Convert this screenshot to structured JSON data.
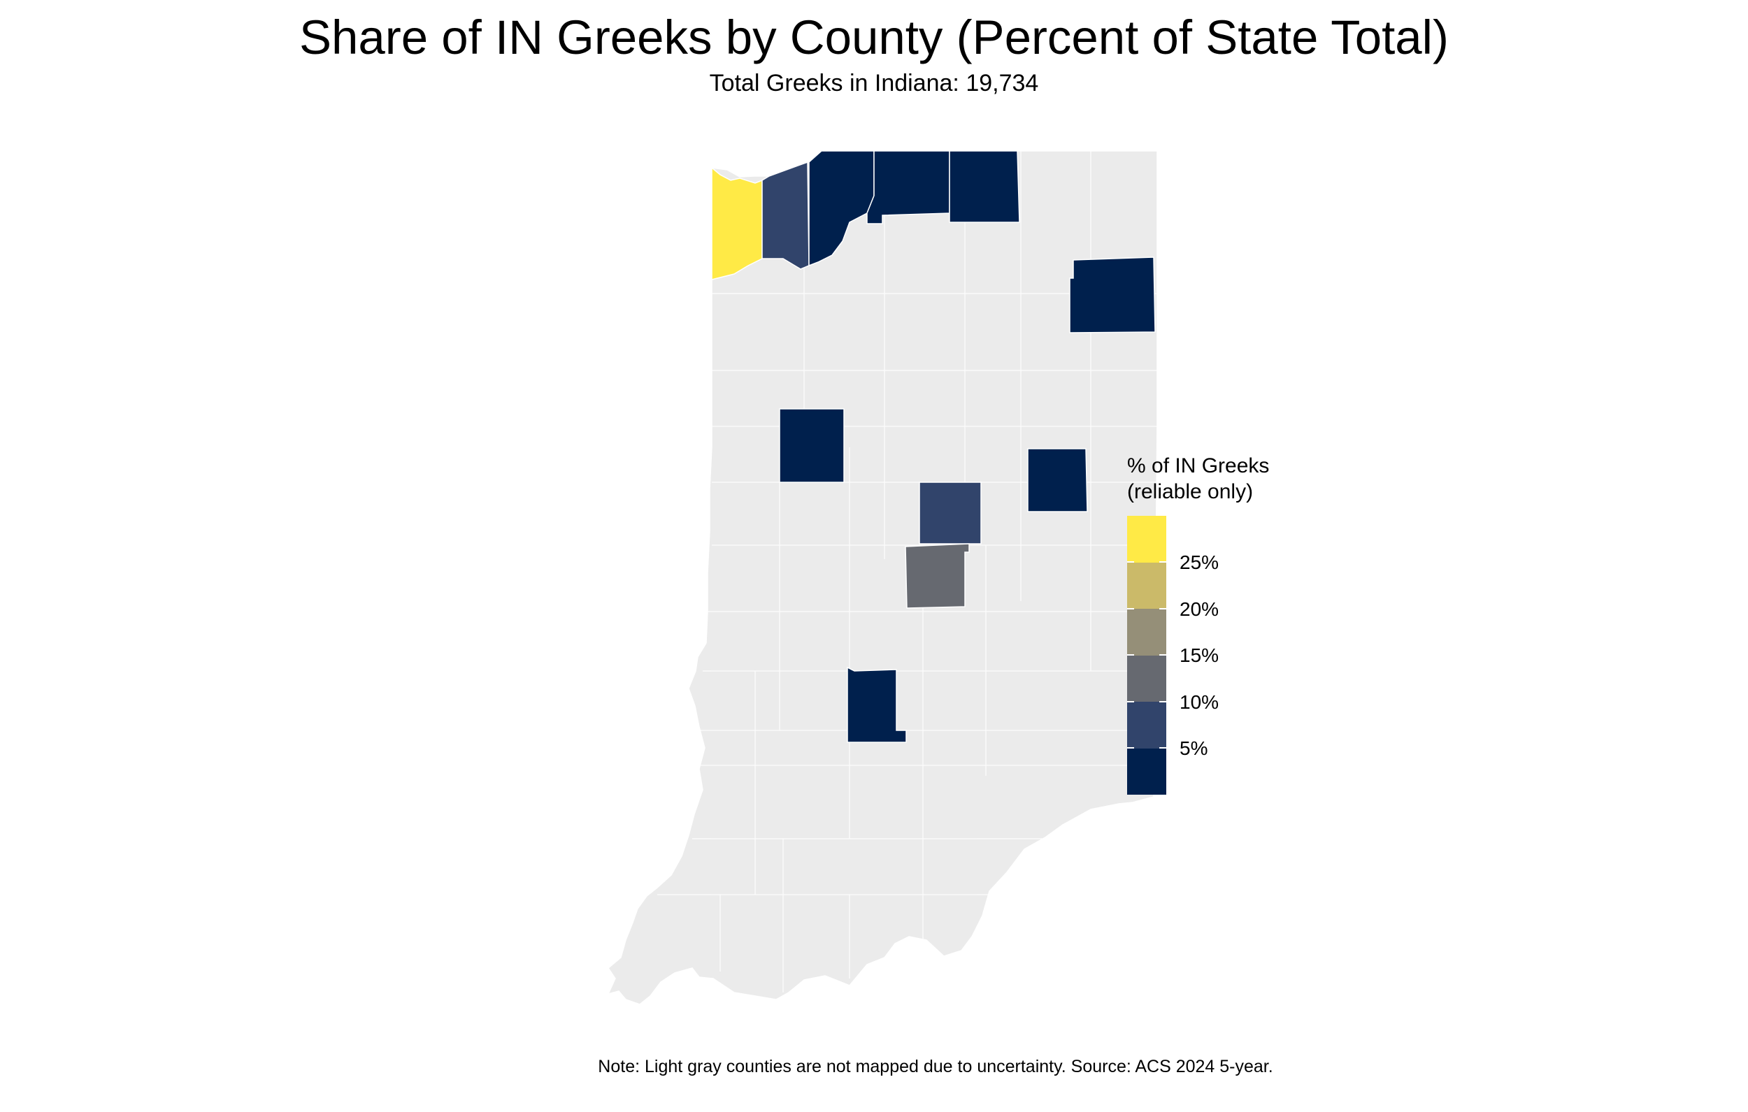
{
  "title": "Share of IN Greeks by County (Percent of State Total)",
  "subtitle": "Total Greeks in Indiana: 19,734",
  "caption": "Note: Light gray counties are not mapped due to uncertainty. Source: ACS 2024 5-year.",
  "colors": {
    "background": "#ffffff",
    "unmapped_county": "#ebebeb",
    "county_border": "#ffffff"
  },
  "legend": {
    "title_line1": "% of IN Greeks",
    "title_line2": "(reliable only)",
    "scale_range": [
      0,
      30
    ],
    "colorbar": [
      {
        "from": 0,
        "to": 5,
        "color": "#00204d"
      },
      {
        "from": 5,
        "to": 10,
        "color": "#31446b"
      },
      {
        "from": 10,
        "to": 15,
        "color": "#666970"
      },
      {
        "from": 15,
        "to": 20,
        "color": "#958f78"
      },
      {
        "from": 20,
        "to": 25,
        "color": "#cbba69"
      },
      {
        "from": 25,
        "to": 30,
        "color": "#ffea46"
      }
    ],
    "tick_labels": [
      "5%",
      "10%",
      "15%",
      "20%",
      "25%"
    ]
  },
  "chart_data": {
    "type": "choropleth",
    "region": "Indiana",
    "value_name": "% of IN Greeks",
    "mapped_counties": [
      {
        "id": "lake",
        "share_bin": "25-30",
        "color": "#ffea46"
      },
      {
        "id": "porter",
        "share_bin": "5-10",
        "color": "#31446b"
      },
      {
        "id": "laporte",
        "share_bin": "0-5",
        "color": "#00204d"
      },
      {
        "id": "stjoseph",
        "share_bin": "0-5",
        "color": "#00204d"
      },
      {
        "id": "elkhart",
        "share_bin": "0-5",
        "color": "#00204d"
      },
      {
        "id": "allen",
        "share_bin": "0-5",
        "color": "#00204d"
      },
      {
        "id": "tippecanoe",
        "share_bin": "0-5",
        "color": "#00204d"
      },
      {
        "id": "hamilton",
        "share_bin": "5-10",
        "color": "#31446b"
      },
      {
        "id": "delaware",
        "share_bin": "0-5",
        "color": "#00204d"
      },
      {
        "id": "marion",
        "share_bin": "10-15",
        "color": "#666970"
      },
      {
        "id": "monroe",
        "share_bin": "0-5",
        "color": "#00204d"
      }
    ]
  }
}
